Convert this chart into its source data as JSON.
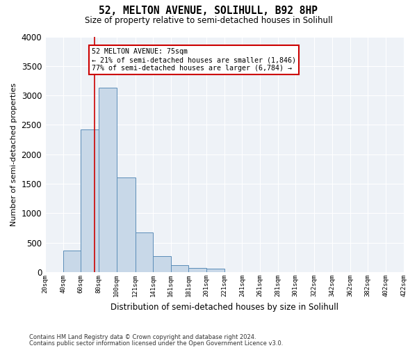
{
  "title1": "52, MELTON AVENUE, SOLIHULL, B92 8HP",
  "title2": "Size of property relative to semi-detached houses in Solihull",
  "xlabel": "Distribution of semi-detached houses by size in Solihull",
  "ylabel": "Number of semi-detached properties",
  "footnote1": "Contains HM Land Registry data © Crown copyright and database right 2024.",
  "footnote2": "Contains public sector information licensed under the Open Government Licence v3.0.",
  "bar_edges": [
    20,
    40,
    60,
    80,
    100,
    121,
    141,
    161,
    181,
    201,
    221,
    241,
    261,
    281,
    301,
    322,
    342,
    362,
    382,
    402,
    422
  ],
  "bar_heights": [
    0,
    370,
    2420,
    3130,
    1610,
    680,
    270,
    120,
    70,
    60,
    0,
    0,
    0,
    0,
    0,
    0,
    0,
    0,
    0,
    0
  ],
  "bar_color": "#c8d8e8",
  "bar_edge_color": "#5b8db8",
  "property_size": 75,
  "property_label": "52 MELTON AVENUE: 75sqm",
  "annotation_line1": "← 21% of semi-detached houses are smaller (1,846)",
  "annotation_line2": "77% of semi-detached houses are larger (6,784) →",
  "vline_color": "#cc0000",
  "annotation_box_color": "#cc0000",
  "ylim": [
    0,
    4000
  ],
  "background_color": "#eef2f7",
  "grid_color": "#ffffff",
  "tick_labels": [
    "20sqm",
    "40sqm",
    "60sqm",
    "80sqm",
    "100sqm",
    "121sqm",
    "141sqm",
    "161sqm",
    "181sqm",
    "201sqm",
    "221sqm",
    "241sqm",
    "261sqm",
    "281sqm",
    "301sqm",
    "322sqm",
    "342sqm",
    "362sqm",
    "382sqm",
    "402sqm",
    "422sqm"
  ]
}
